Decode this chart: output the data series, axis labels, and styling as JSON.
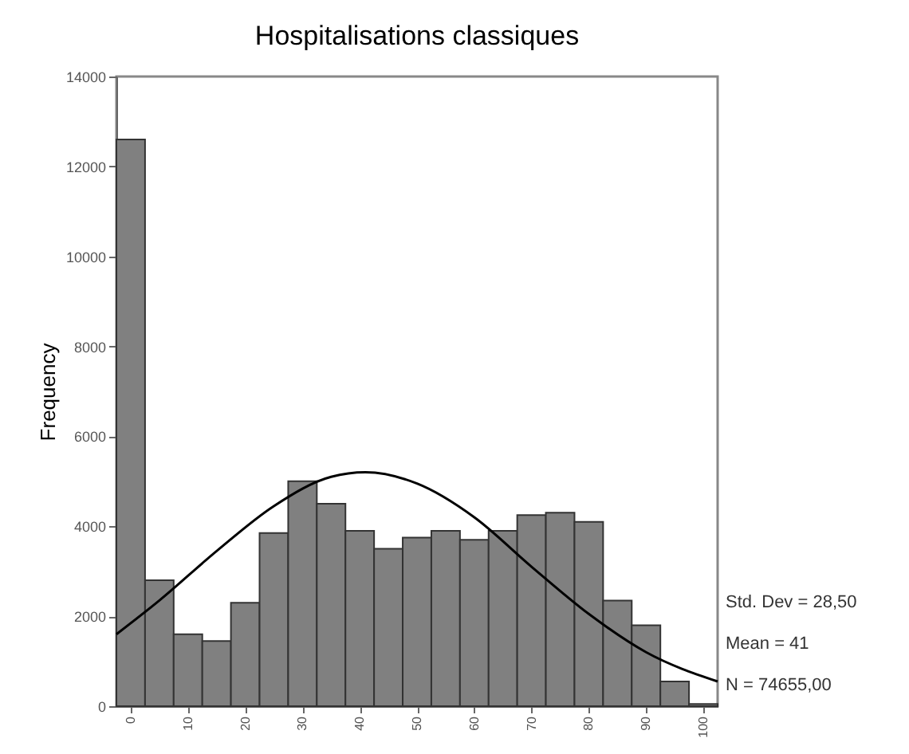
{
  "chart_data": {
    "type": "histogram",
    "title": "Hospitalisations classiques",
    "ylabel": "Frequency",
    "bins": [
      -2.5,
      2.5,
      7.5,
      12.5,
      17.5,
      22.5,
      27.5,
      32.5,
      37.5,
      42.5,
      47.5,
      52.5,
      57.5,
      62.5,
      67.5,
      72.5,
      77.5,
      82.5,
      87.5,
      92.5,
      97.5,
      102.5
    ],
    "series": [
      {
        "type": "histogram",
        "color": "#808080",
        "values": [
          12600,
          2800,
          1600,
          1450,
          2300,
          3850,
          5000,
          4500,
          3900,
          3500,
          3750,
          3900,
          3700,
          3900,
          4250,
          4300,
          4100,
          2350,
          1800,
          550,
          50
        ]
      },
      {
        "type": "line",
        "color": "#000000",
        "x": [
          -2.5,
          5,
          15,
          25,
          35,
          41,
          50,
          60,
          70,
          80,
          90,
          102.5
        ],
        "values": [
          1600,
          2350,
          3450,
          4450,
          5100,
          5200,
          4950,
          4200,
          3100,
          2050,
          1200,
          550
        ]
      }
    ],
    "xlim": [
      -2.5,
      102.5
    ],
    "xticks": [
      0,
      10,
      20,
      30,
      40,
      50,
      60,
      70,
      80,
      90,
      100
    ],
    "ylim": [
      0,
      14000
    ],
    "yticks": [
      0,
      2000,
      4000,
      6000,
      8000,
      10000,
      12000,
      14000
    ],
    "grid": false,
    "marker": "none",
    "annotations": [
      "Std. Dev = 28,50",
      "Mean = 41",
      "N = 74655,00"
    ]
  }
}
